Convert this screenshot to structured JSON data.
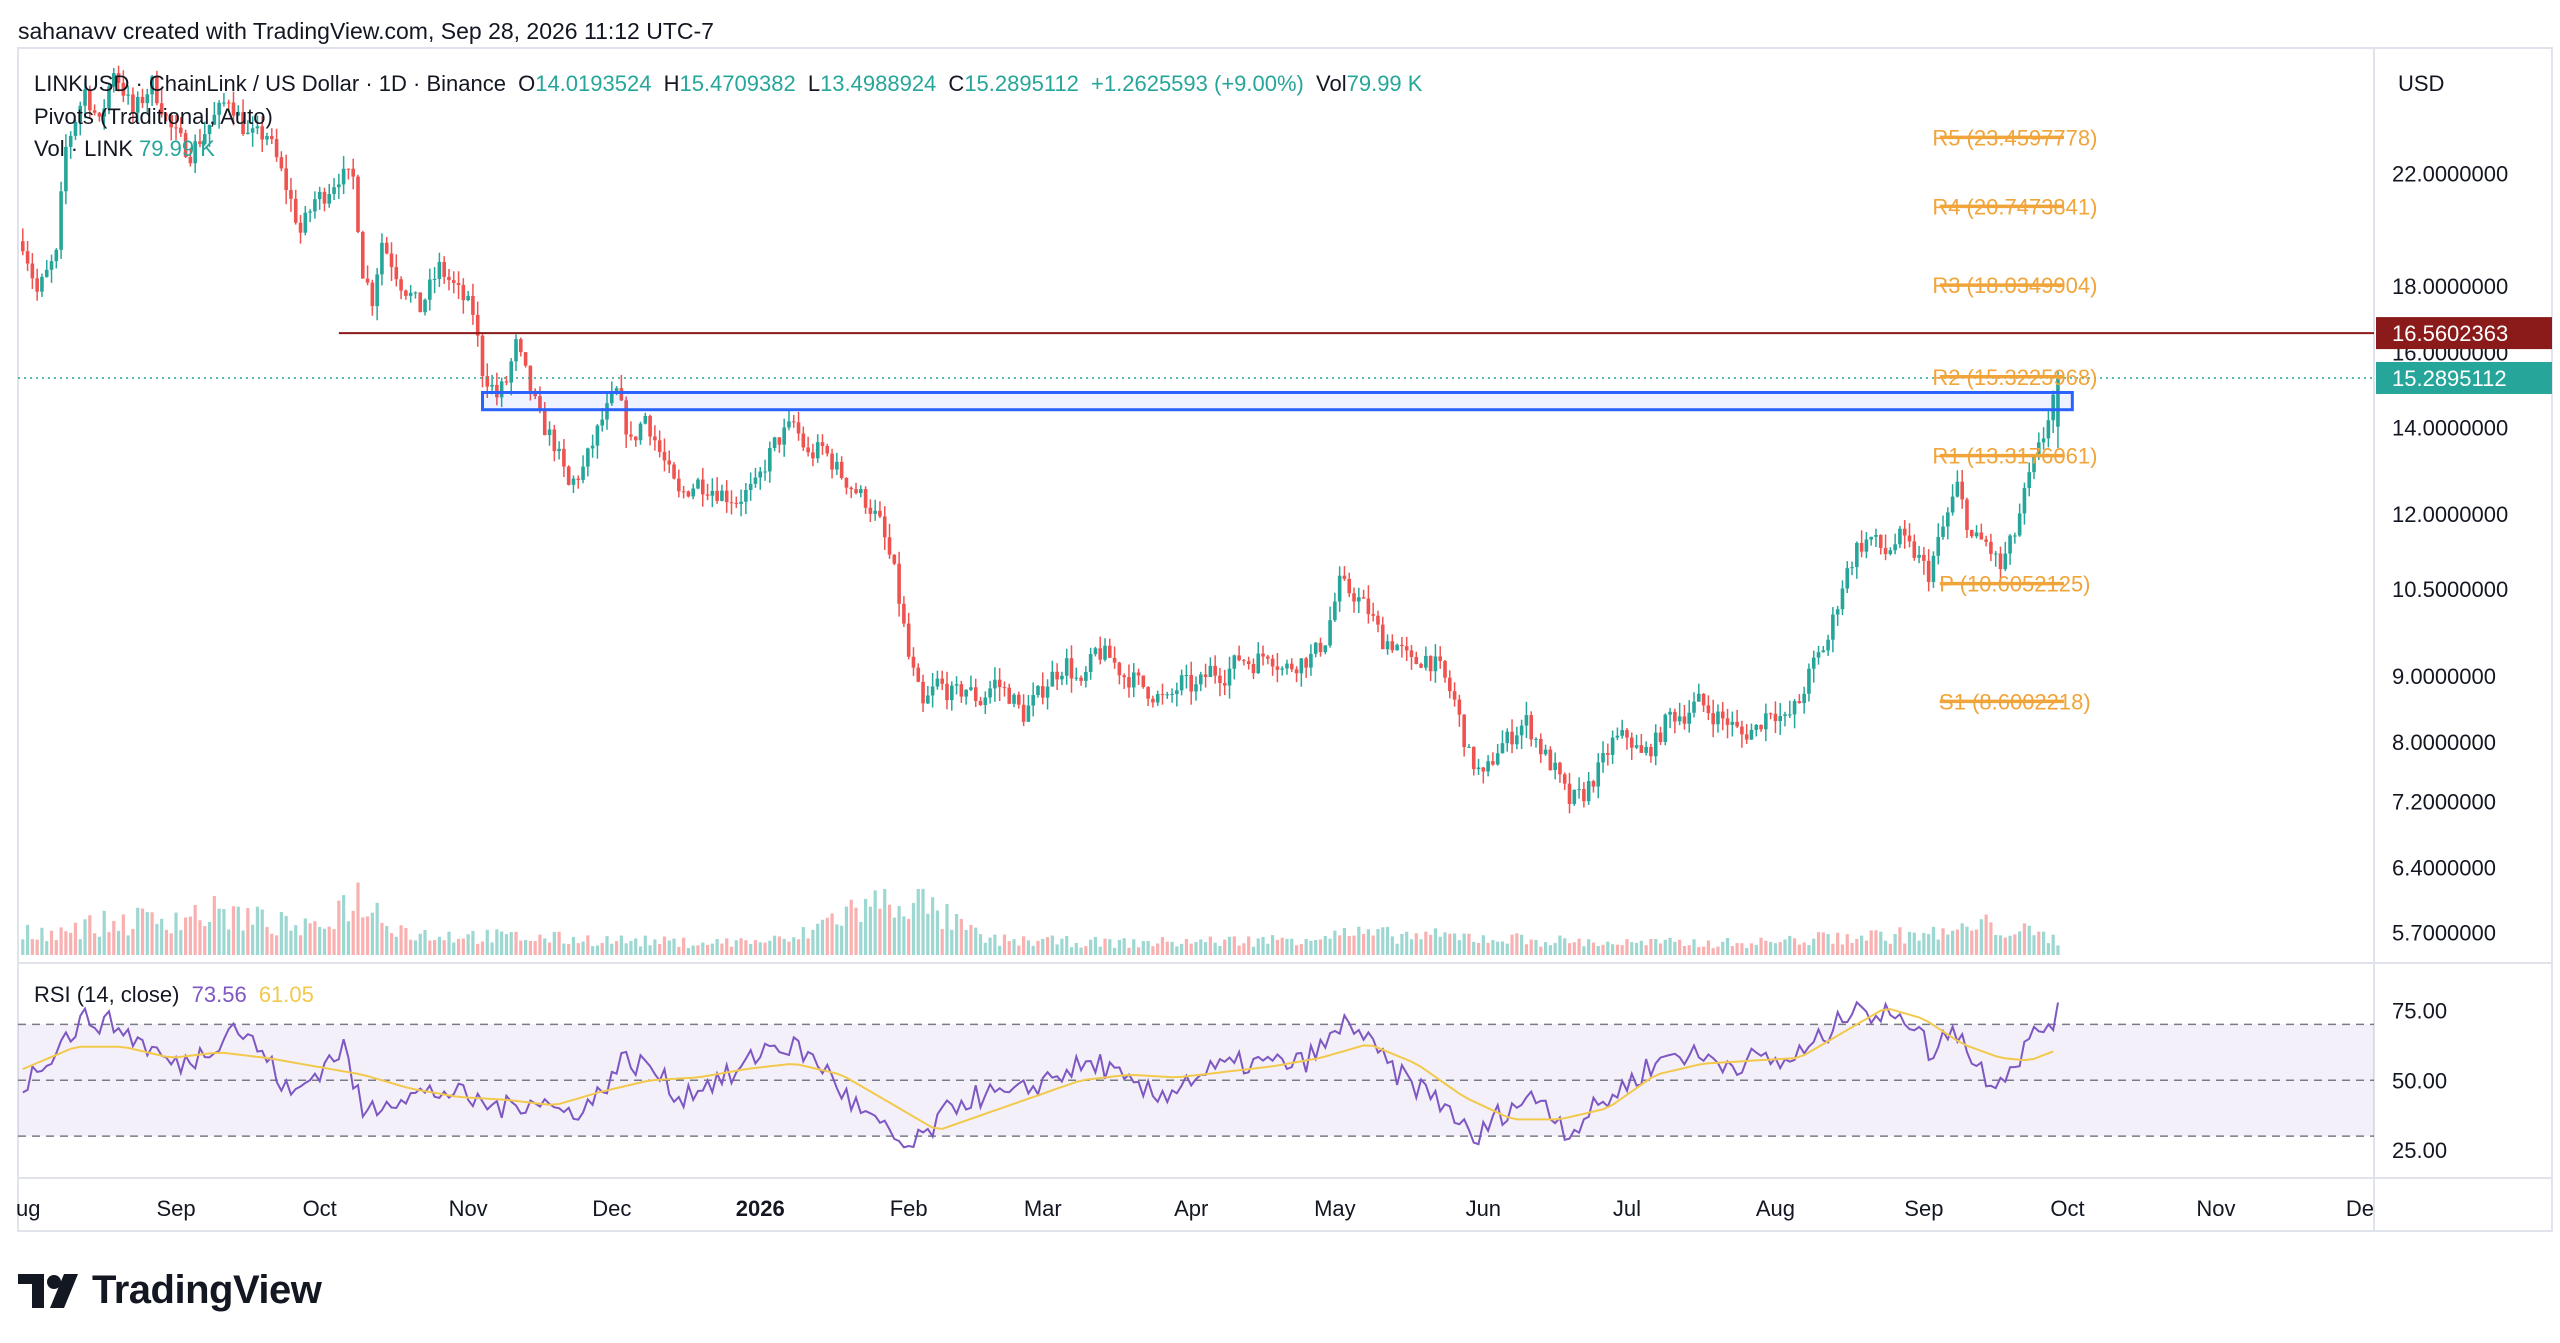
{
  "header": {
    "attribution": "sahanavv created with TradingView.com, Sep 28, 2026 11:12 UTC-7",
    "symbol_line": "LINKUSD · ChainLink / US Dollar · 1D · Binance",
    "o_label": "O",
    "o_value": "14.0193524",
    "h_label": "H",
    "h_value": "15.4709382",
    "l_label": "L",
    "l_value": "13.4988924",
    "c_label": "C",
    "c_value": "15.2895112",
    "change": "+1.2625593 (+9.00%)",
    "vol_label": "Vol",
    "vol_value": "79.99 K",
    "pivots_label": "Pivots (Traditional, Auto)",
    "vol_link_label": "Vol · LINK",
    "vol_link_value": "79.99 K"
  },
  "currency": "USD",
  "rsi_header": {
    "label": "RSI (14, close)",
    "value1": "73.56",
    "value2": "61.05"
  },
  "logo_text": "TradingView",
  "colors": {
    "up": "#26a69a",
    "down": "#ef5350",
    "pivot": "#f0a43a",
    "resistance": "#8b1a1a",
    "zone": "#2962ff",
    "rsi": "#7e57c2",
    "rsi_ma": "#f2c94c"
  },
  "chart_data": [
    {
      "type": "candlestick",
      "title": "LINKUSD · ChainLink / US Dollar · 1D · Binance",
      "y_scale": "log",
      "ylim": [
        5.4,
        27.5
      ],
      "y_ticks": [
        "22.0000000",
        "18.0000000",
        "16.0000000",
        "14.0000000",
        "12.0000000",
        "10.5000000",
        "9.0000000",
        "8.0000000",
        "7.2000000",
        "6.4000000",
        "5.7000000"
      ],
      "y_tick_values": [
        22,
        18,
        16,
        14,
        12,
        10.5,
        9,
        8,
        7.2,
        6.4,
        5.7
      ],
      "x_ticks": [
        "ug",
        "Sep",
        "Oct",
        "Nov",
        "Dec",
        "2026",
        "Feb",
        "Mar",
        "Apr",
        "May",
        "Jun",
        "Jul",
        "Aug",
        "Sep",
        "Oct",
        "Nov",
        "De"
      ],
      "x_tick_days": [
        0,
        31,
        61,
        92,
        122,
        153,
        184,
        212,
        243,
        273,
        304,
        334,
        365,
        396,
        426,
        457,
        487
      ],
      "x_range_days": [
        -2,
        490
      ],
      "last_data_day": 424,
      "close_path": [
        [
          -1,
          19.5
        ],
        [
          2,
          17.8
        ],
        [
          6,
          19.0
        ],
        [
          8,
          23.0
        ],
        [
          12,
          25.5
        ],
        [
          15,
          24.0
        ],
        [
          18,
          26.5
        ],
        [
          22,
          24.5
        ],
        [
          26,
          25.8
        ],
        [
          30,
          23.8
        ],
        [
          34,
          22.8
        ],
        [
          38,
          24.0
        ],
        [
          42,
          25.2
        ],
        [
          46,
          23.5
        ],
        [
          50,
          23.6
        ],
        [
          54,
          21.5
        ],
        [
          57,
          19.8
        ],
        [
          60,
          21.0
        ],
        [
          62,
          21.2
        ],
        [
          65,
          21.9
        ],
        [
          68,
          21.8
        ],
        [
          70,
          18.5
        ],
        [
          72,
          17.6
        ],
        [
          74,
          19.5
        ],
        [
          78,
          18.1
        ],
        [
          82,
          17.3
        ],
        [
          86,
          18.6
        ],
        [
          90,
          17.8
        ],
        [
          93,
          17.2
        ],
        [
          95,
          15.5
        ],
        [
          98,
          14.8
        ],
        [
          100,
          15.2
        ],
        [
          102,
          16.2
        ],
        [
          104,
          15.4
        ],
        [
          107,
          14.2
        ],
        [
          110,
          13.6
        ],
        [
          113,
          12.6
        ],
        [
          116,
          13.0
        ],
        [
          120,
          14.2
        ],
        [
          123,
          14.9
        ],
        [
          126,
          13.6
        ],
        [
          129,
          14.3
        ],
        [
          132,
          13.4
        ],
        [
          136,
          12.4
        ],
        [
          140,
          12.7
        ],
        [
          144,
          12.5
        ],
        [
          148,
          12.3
        ],
        [
          152,
          12.6
        ],
        [
          156,
          13.6
        ],
        [
          160,
          14.1
        ],
        [
          163,
          13.3
        ],
        [
          166,
          13.5
        ],
        [
          169,
          13.0
        ],
        [
          172,
          12.6
        ],
        [
          175,
          12.3
        ],
        [
          178,
          11.8
        ],
        [
          181,
          10.8
        ],
        [
          184,
          9.3
        ],
        [
          187,
          8.5
        ],
        [
          190,
          8.9
        ],
        [
          193,
          8.7
        ],
        [
          196,
          8.8
        ],
        [
          199,
          8.6
        ],
        [
          202,
          8.9
        ],
        [
          205,
          8.7
        ],
        [
          208,
          8.4
        ],
        [
          211,
          8.7
        ],
        [
          214,
          9.0
        ],
        [
          217,
          9.2
        ],
        [
          220,
          8.8
        ],
        [
          223,
          9.4
        ],
        [
          226,
          9.3
        ],
        [
          229,
          9.0
        ],
        [
          232,
          8.9
        ],
        [
          235,
          8.7
        ],
        [
          238,
          8.6
        ],
        [
          241,
          8.9
        ],
        [
          244,
          8.8
        ],
        [
          247,
          9.1
        ],
        [
          250,
          9.0
        ],
        [
          253,
          9.3
        ],
        [
          256,
          9.2
        ],
        [
          259,
          9.4
        ],
        [
          262,
          9.1
        ],
        [
          265,
          9.2
        ],
        [
          268,
          9.3
        ],
        [
          271,
          9.6
        ],
        [
          274,
          10.6
        ],
        [
          277,
          10.4
        ],
        [
          280,
          10.1
        ],
        [
          283,
          9.6
        ],
        [
          286,
          9.5
        ],
        [
          289,
          9.2
        ],
        [
          292,
          9.3
        ],
        [
          295,
          9.1
        ],
        [
          298,
          8.6
        ],
        [
          301,
          7.8
        ],
        [
          304,
          7.5
        ],
        [
          307,
          7.9
        ],
        [
          310,
          8.1
        ],
        [
          313,
          8.3
        ],
        [
          316,
          7.9
        ],
        [
          319,
          7.6
        ],
        [
          322,
          7.2
        ],
        [
          325,
          7.3
        ],
        [
          328,
          7.6
        ],
        [
          331,
          8.0
        ],
        [
          334,
          8.1
        ],
        [
          337,
          7.8
        ],
        [
          340,
          8.0
        ],
        [
          343,
          8.4
        ],
        [
          346,
          8.4
        ],
        [
          349,
          8.6
        ],
        [
          352,
          8.4
        ],
        [
          355,
          8.3
        ],
        [
          358,
          8.1
        ],
        [
          361,
          8.2
        ],
        [
          364,
          8.5
        ],
        [
          367,
          8.3
        ],
        [
          370,
          8.6
        ],
        [
          373,
          9.2
        ],
        [
          376,
          9.6
        ],
        [
          379,
          10.6
        ],
        [
          382,
          11.3
        ],
        [
          385,
          11.5
        ],
        [
          388,
          11.2
        ],
        [
          391,
          11.5
        ],
        [
          394,
          11.2
        ],
        [
          397,
          10.8
        ],
        [
          400,
          11.7
        ],
        [
          403,
          12.6
        ],
        [
          406,
          11.5
        ],
        [
          409,
          11.4
        ],
        [
          412,
          10.9
        ],
        [
          415,
          11.6
        ],
        [
          418,
          12.8
        ],
        [
          421,
          13.8
        ],
        [
          424,
          15.29
        ]
      ],
      "current_price": "15.2895112",
      "resistance_level": {
        "label": "16.5602363",
        "value": 16.5602363,
        "from_day": 65
      },
      "support_zone": {
        "low": 14.45,
        "high": 14.9,
        "from_day": 95,
        "to_day": 427
      },
      "pivots": [
        {
          "label": "R5 (23.4597778)",
          "value": 23.4597778
        },
        {
          "label": "R4 (20.7473841)",
          "value": 20.7473841
        },
        {
          "label": "R3 (18.0349904)",
          "value": 18.0349904
        },
        {
          "label": "R2 (15.3225968)",
          "value": 15.3225968
        },
        {
          "label": "R1 (13.3176061)",
          "value": 13.3176061
        },
        {
          "label": "P (10.6052125)",
          "value": 10.6052125
        },
        {
          "label": "S1 (8.6002218)",
          "value": 8.6002218
        }
      ],
      "pivot_period_days": [
        401,
        424
      ]
    },
    {
      "type": "line",
      "title": "RSI (14, close)",
      "ylim": [
        15,
        92
      ],
      "y_ticks": [
        "75.00",
        "50.00",
        "25.00"
      ],
      "y_tick_values": [
        75,
        50,
        25
      ],
      "bands": [
        70,
        50,
        30
      ],
      "series": [
        {
          "name": "RSI",
          "path": [
            [
              -1,
              48
            ],
            [
              6,
              62
            ],
            [
              12,
              72
            ],
            [
              18,
              70
            ],
            [
              25,
              62
            ],
            [
              31,
              55
            ],
            [
              37,
              60
            ],
            [
              43,
              70
            ],
            [
              49,
              60
            ],
            [
              55,
              44
            ],
            [
              61,
              54
            ],
            [
              66,
              62
            ],
            [
              70,
              38
            ],
            [
              76,
              44
            ],
            [
              82,
              45
            ],
            [
              88,
              46
            ],
            [
              94,
              42
            ],
            [
              100,
              40
            ],
            [
              106,
              44
            ],
            [
              112,
              38
            ],
            [
              118,
              42
            ],
            [
              124,
              57
            ],
            [
              130,
              55
            ],
            [
              136,
              44
            ],
            [
              142,
              49
            ],
            [
              148,
              52
            ],
            [
              154,
              62
            ],
            [
              160,
              62
            ],
            [
              166,
              55
            ],
            [
              172,
              42
            ],
            [
              178,
              33
            ],
            [
              184,
              25
            ],
            [
              188,
              31
            ],
            [
              194,
              42
            ],
            [
              200,
              45
            ],
            [
              206,
              44
            ],
            [
              212,
              50
            ],
            [
              218,
              54
            ],
            [
              224,
              56
            ],
            [
              230,
              48
            ],
            [
              236,
              44
            ],
            [
              242,
              50
            ],
            [
              248,
              54
            ],
            [
              254,
              56
            ],
            [
              260,
              56
            ],
            [
              266,
              56
            ],
            [
              272,
              64
            ],
            [
              276,
              72
            ],
            [
              280,
              63
            ],
            [
              286,
              52
            ],
            [
              292,
              46
            ],
            [
              298,
              38
            ],
            [
              302,
              27
            ],
            [
              306,
              36
            ],
            [
              310,
              41
            ],
            [
              316,
              44
            ],
            [
              322,
              31
            ],
            [
              326,
              38
            ],
            [
              332,
              46
            ],
            [
              338,
              54
            ],
            [
              344,
              60
            ],
            [
              350,
              58
            ],
            [
              356,
              56
            ],
            [
              362,
              58
            ],
            [
              366,
              56
            ],
            [
              372,
              61
            ],
            [
              378,
              70
            ],
            [
              382,
              80
            ],
            [
              386,
              70
            ],
            [
              390,
              76
            ],
            [
              394,
              70
            ],
            [
              398,
              58
            ],
            [
              402,
              71
            ],
            [
              406,
              58
            ],
            [
              410,
              50
            ],
            [
              414,
              54
            ],
            [
              418,
              64
            ],
            [
              424,
              74
            ]
          ]
        },
        {
          "name": "RSI MA",
          "path": [
            [
              -1,
              54
            ],
            [
              10,
              62
            ],
            [
              20,
              62
            ],
            [
              30,
              58
            ],
            [
              40,
              60
            ],
            [
              50,
              58
            ],
            [
              60,
              55
            ],
            [
              70,
              52
            ],
            [
              80,
              47
            ],
            [
              90,
              44
            ],
            [
              100,
              43
            ],
            [
              110,
              41
            ],
            [
              120,
              46
            ],
            [
              130,
              50
            ],
            [
              140,
              51
            ],
            [
              150,
              54
            ],
            [
              160,
              56
            ],
            [
              170,
              52
            ],
            [
              180,
              42
            ],
            [
              190,
              32
            ],
            [
              200,
              38
            ],
            [
              210,
              44
            ],
            [
              220,
              50
            ],
            [
              230,
              52
            ],
            [
              240,
              51
            ],
            [
              250,
              53
            ],
            [
              260,
              55
            ],
            [
              270,
              58
            ],
            [
              280,
              63
            ],
            [
              290,
              56
            ],
            [
              300,
              44
            ],
            [
              310,
              36
            ],
            [
              320,
              36
            ],
            [
              330,
              40
            ],
            [
              340,
              52
            ],
            [
              350,
              56
            ],
            [
              360,
              57
            ],
            [
              370,
              58
            ],
            [
              380,
              68
            ],
            [
              388,
              76
            ],
            [
              396,
              72
            ],
            [
              404,
              63
            ],
            [
              412,
              58
            ],
            [
              418,
              57
            ],
            [
              424,
              61
            ]
          ]
        }
      ]
    },
    {
      "type": "bar",
      "title": "Vol · LINK",
      "note": "daily volume histogram; relative heights only",
      "volume_profile": [
        [
          -1,
          0.35
        ],
        [
          20,
          0.55
        ],
        [
          40,
          0.7
        ],
        [
          60,
          0.4
        ],
        [
          68,
          1.0
        ],
        [
          80,
          0.35
        ],
        [
          100,
          0.3
        ],
        [
          120,
          0.25
        ],
        [
          140,
          0.2
        ],
        [
          160,
          0.25
        ],
        [
          170,
          0.7
        ],
        [
          184,
          0.95
        ],
        [
          200,
          0.25
        ],
        [
          230,
          0.2
        ],
        [
          260,
          0.25
        ],
        [
          274,
          0.35
        ],
        [
          300,
          0.3
        ],
        [
          330,
          0.2
        ],
        [
          360,
          0.2
        ],
        [
          380,
          0.3
        ],
        [
          400,
          0.35
        ],
        [
          410,
          0.5
        ],
        [
          424,
          0.25
        ]
      ]
    }
  ]
}
